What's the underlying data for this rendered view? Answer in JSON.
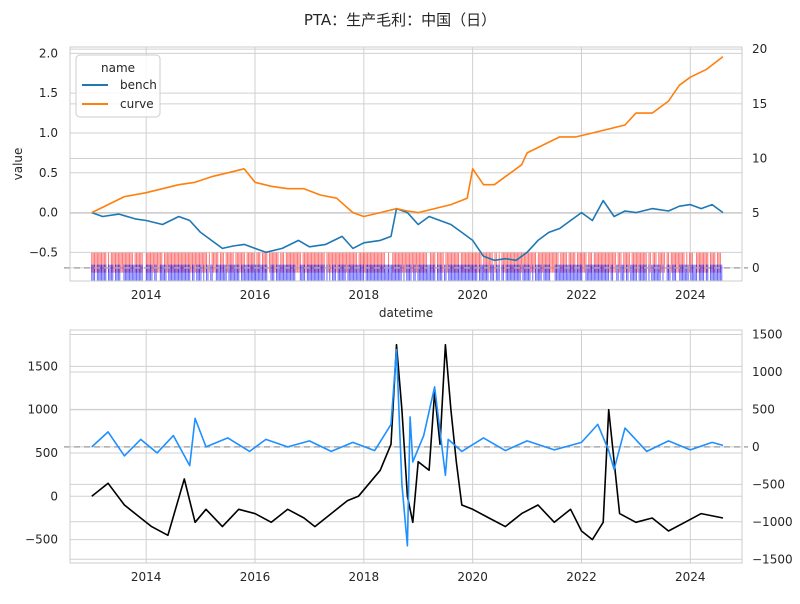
{
  "title": "PTA：生产毛利：中国（日）",
  "chart_data": [
    {
      "type": "line",
      "name": "top",
      "xlabel": "datetime",
      "ylabel": "value",
      "xlim": [
        2012.6,
        2024.95
      ],
      "ylim": [
        -0.86,
        2.08
      ],
      "yticks": [
        -0.5,
        0.0,
        0.5,
        1.0,
        1.5,
        2.0
      ],
      "ytick_labels": [
        "−0.5",
        "0.0",
        "0.5",
        "1.0",
        "1.5",
        "2.0"
      ],
      "y2lim": [
        -1.2,
        20.2
      ],
      "y2ticks": [
        0,
        5,
        10,
        15,
        20
      ],
      "y2tick_labels": [
        "0",
        "5",
        "10",
        "15",
        "20"
      ],
      "xticks": [
        2014,
        2016,
        2018,
        2020,
        2022,
        2024
      ],
      "xtick_labels": [
        "2014",
        "2016",
        "2018",
        "2020",
        "2022",
        "2024"
      ],
      "grid": true,
      "legend": {
        "title": "name",
        "placement": "top-left"
      },
      "series": [
        {
          "name": "bench",
          "axis": "left",
          "color": "#1f77b4",
          "x": [
            2013.0,
            2013.2,
            2013.5,
            2013.8,
            2014.0,
            2014.3,
            2014.6,
            2014.8,
            2015.0,
            2015.2,
            2015.4,
            2015.6,
            2015.8,
            2016.0,
            2016.2,
            2016.5,
            2016.8,
            2017.0,
            2017.3,
            2017.6,
            2017.8,
            2018.0,
            2018.3,
            2018.5,
            2018.6,
            2018.8,
            2019.0,
            2019.2,
            2019.4,
            2019.6,
            2019.8,
            2020.0,
            2020.2,
            2020.4,
            2020.6,
            2020.8,
            2021.0,
            2021.2,
            2021.4,
            2021.6,
            2021.8,
            2022.0,
            2022.2,
            2022.4,
            2022.6,
            2022.8,
            2023.0,
            2023.3,
            2023.6,
            2023.8,
            2024.0,
            2024.2,
            2024.4,
            2024.6
          ],
          "y": [
            0.0,
            -0.05,
            -0.02,
            -0.08,
            -0.1,
            -0.15,
            -0.05,
            -0.1,
            -0.25,
            -0.35,
            -0.45,
            -0.42,
            -0.4,
            -0.45,
            -0.5,
            -0.45,
            -0.35,
            -0.43,
            -0.4,
            -0.3,
            -0.45,
            -0.38,
            -0.35,
            -0.3,
            0.05,
            0.0,
            -0.15,
            -0.05,
            -0.1,
            -0.15,
            -0.25,
            -0.35,
            -0.55,
            -0.6,
            -0.58,
            -0.6,
            -0.5,
            -0.35,
            -0.25,
            -0.2,
            -0.1,
            0.0,
            -0.1,
            0.15,
            -0.05,
            0.02,
            0.0,
            0.05,
            0.02,
            0.08,
            0.1,
            0.05,
            0.1,
            0.0
          ]
        },
        {
          "name": "curve",
          "axis": "left",
          "color": "#ff7f0e",
          "x": [
            2013.0,
            2013.3,
            2013.6,
            2014.0,
            2014.3,
            2014.6,
            2014.9,
            2015.2,
            2015.5,
            2015.8,
            2016.0,
            2016.3,
            2016.6,
            2016.9,
            2017.2,
            2017.5,
            2017.8,
            2018.0,
            2018.3,
            2018.6,
            2018.8,
            2019.0,
            2019.3,
            2019.6,
            2019.9,
            2020.0,
            2020.2,
            2020.4,
            2020.6,
            2020.9,
            2021.0,
            2021.3,
            2021.6,
            2021.9,
            2022.2,
            2022.5,
            2022.8,
            2023.0,
            2023.3,
            2023.6,
            2023.8,
            2024.0,
            2024.3,
            2024.6
          ],
          "y": [
            0.0,
            0.1,
            0.2,
            0.25,
            0.3,
            0.35,
            0.38,
            0.45,
            0.5,
            0.55,
            0.38,
            0.33,
            0.3,
            0.3,
            0.22,
            0.18,
            0.0,
            -0.05,
            0.0,
            0.05,
            0.02,
            0.0,
            0.05,
            0.1,
            0.18,
            0.55,
            0.35,
            0.35,
            0.45,
            0.6,
            0.75,
            0.85,
            0.95,
            0.95,
            1.0,
            1.05,
            1.1,
            1.25,
            1.25,
            1.4,
            1.6,
            1.7,
            1.8,
            1.96
          ]
        }
      ],
      "band_red": {
        "color": "#ff0000",
        "y": -0.63
      },
      "band_blue": {
        "color": "#0000ff",
        "y": -0.78
      }
    },
    {
      "type": "line",
      "name": "bottom",
      "xlim": [
        2012.6,
        2024.95
      ],
      "ylim": [
        -770,
        1920
      ],
      "yticks": [
        -500,
        0,
        500,
        1000,
        1500
      ],
      "ytick_labels": [
        "−500",
        "0",
        "500",
        "1000",
        "1500"
      ],
      "y2lim": [
        -1550,
        1560
      ],
      "y2ticks": [
        -1500,
        -1000,
        -500,
        0,
        500,
        1000,
        1500
      ],
      "y2tick_labels": [
        "−1500",
        "−1000",
        "−500",
        "0",
        "500",
        "1000",
        "1500"
      ],
      "xticks": [
        2014,
        2016,
        2018,
        2020,
        2022,
        2024
      ],
      "xtick_labels": [
        "2014",
        "2016",
        "2018",
        "2020",
        "2022",
        "2024"
      ],
      "grid": true,
      "series": [
        {
          "axis": "left",
          "color": "#000000",
          "x": [
            2013.0,
            2013.3,
            2013.6,
            2013.9,
            2014.1,
            2014.4,
            2014.7,
            2014.9,
            2015.1,
            2015.4,
            2015.7,
            2016.0,
            2016.3,
            2016.6,
            2016.9,
            2017.1,
            2017.4,
            2017.7,
            2017.9,
            2018.1,
            2018.3,
            2018.5,
            2018.6,
            2018.7,
            2018.8,
            2018.9,
            2019.0,
            2019.2,
            2019.3,
            2019.4,
            2019.5,
            2019.6,
            2019.7,
            2019.8,
            2020.0,
            2020.3,
            2020.6,
            2020.9,
            2021.2,
            2021.5,
            2021.8,
            2022.0,
            2022.2,
            2022.4,
            2022.5,
            2022.7,
            2023.0,
            2023.3,
            2023.6,
            2023.9,
            2024.2,
            2024.6
          ],
          "y": [
            0,
            150,
            -100,
            -250,
            -350,
            -450,
            200,
            -300,
            -150,
            -350,
            -150,
            -200,
            -300,
            -150,
            -250,
            -350,
            -200,
            -50,
            0,
            150,
            300,
            600,
            1750,
            1000,
            0,
            -300,
            400,
            300,
            1200,
            600,
            1750,
            1000,
            400,
            -100,
            -150,
            -250,
            -350,
            -200,
            -100,
            -300,
            -150,
            -400,
            -500,
            -300,
            1000,
            -200,
            -300,
            -250,
            -400,
            -300,
            -200,
            -250
          ]
        },
        {
          "axis": "right",
          "color": "#1e90ff",
          "x": [
            2013.0,
            2013.3,
            2013.6,
            2013.9,
            2014.2,
            2014.5,
            2014.8,
            2014.9,
            2015.1,
            2015.5,
            2015.9,
            2016.2,
            2016.6,
            2017.0,
            2017.4,
            2017.8,
            2018.2,
            2018.5,
            2018.6,
            2018.7,
            2018.8,
            2018.85,
            2018.9,
            2019.1,
            2019.3,
            2019.5,
            2019.55,
            2019.8,
            2020.2,
            2020.6,
            2021.0,
            2021.5,
            2022.0,
            2022.3,
            2022.5,
            2022.6,
            2022.8,
            2023.2,
            2023.6,
            2024.0,
            2024.4,
            2024.6
          ],
          "y": [
            0,
            200,
            -120,
            100,
            -80,
            150,
            -250,
            380,
            0,
            120,
            -60,
            100,
            0,
            80,
            -60,
            60,
            -50,
            300,
            1300,
            -500,
            -1320,
            400,
            -200,
            150,
            800,
            -380,
            100,
            -60,
            120,
            -50,
            80,
            -40,
            60,
            300,
            -50,
            -300,
            250,
            -60,
            80,
            -40,
            60,
            20
          ]
        }
      ]
    }
  ]
}
